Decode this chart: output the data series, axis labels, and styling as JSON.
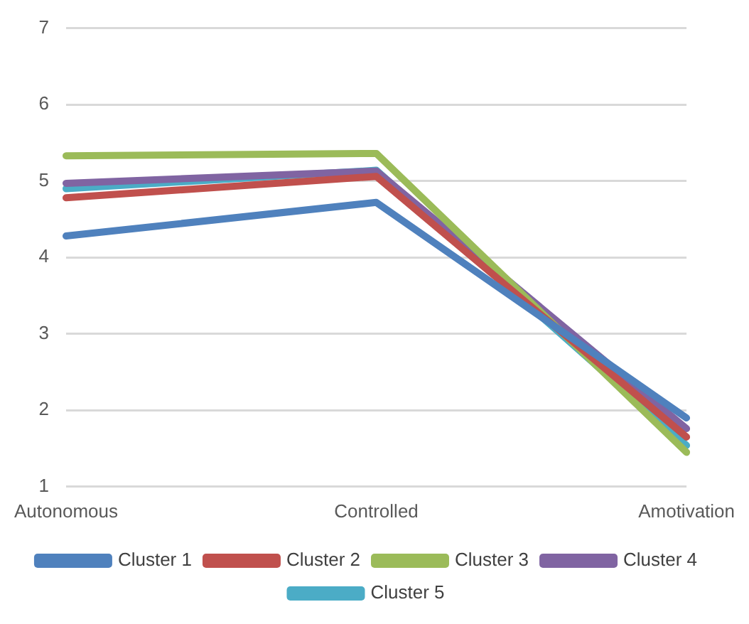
{
  "chart_data": {
    "type": "line",
    "categories": [
      "Autonomous",
      "Controlled",
      "Amotivation"
    ],
    "series": [
      {
        "name": "Cluster 1",
        "color": "#4f81bd",
        "values": [
          4.28,
          4.72,
          1.9
        ]
      },
      {
        "name": "Cluster 2",
        "color": "#c0504d",
        "values": [
          4.78,
          5.06,
          1.65
        ]
      },
      {
        "name": "Cluster 3",
        "color": "#9bbb59",
        "values": [
          5.33,
          5.36,
          1.45
        ]
      },
      {
        "name": "Cluster 4",
        "color": "#8064a2",
        "values": [
          4.97,
          5.13,
          1.76
        ]
      },
      {
        "name": "Cluster 5",
        "color": "#4bacc6",
        "values": [
          4.9,
          5.14,
          1.54
        ]
      }
    ],
    "ylim": [
      1,
      7
    ],
    "yticks": [
      1,
      2,
      3,
      4,
      5,
      6,
      7
    ],
    "grid": "y",
    "legend": "bottom",
    "marker": "none",
    "line_style": "solid"
  }
}
